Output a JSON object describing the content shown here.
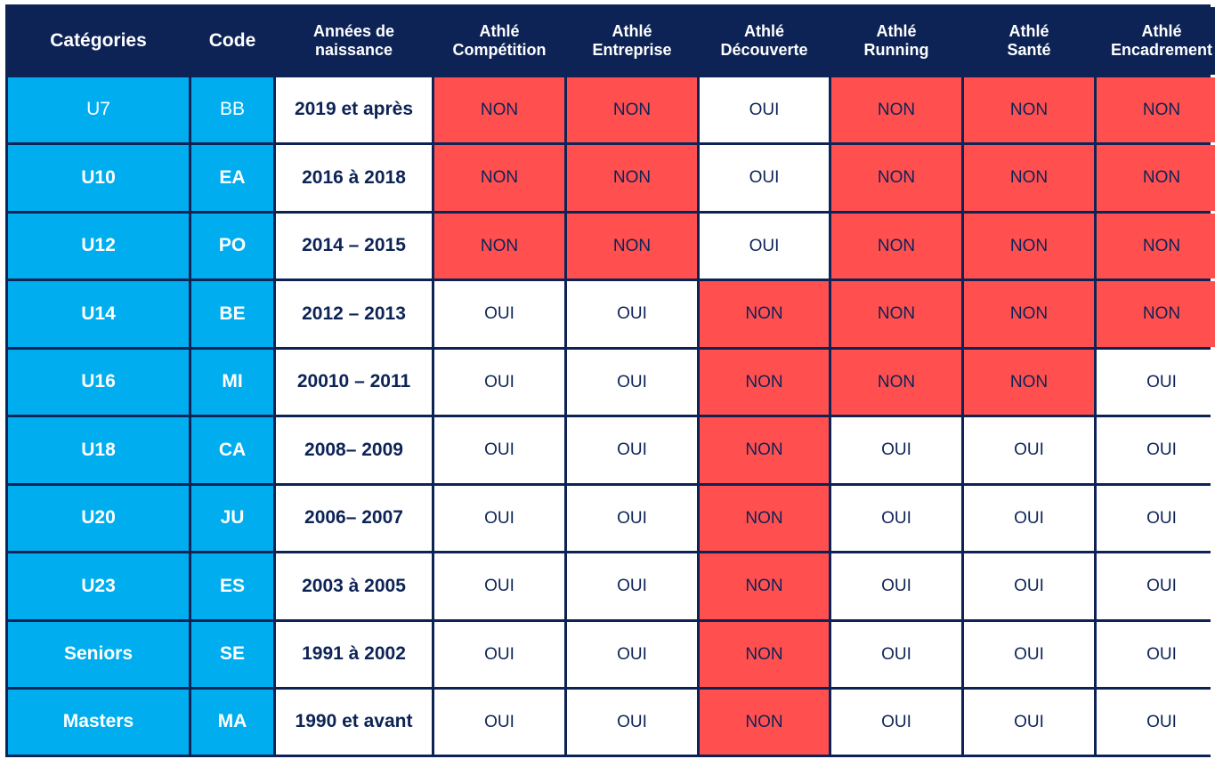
{
  "headers": [
    "Catégories",
    "Code",
    "Années de\nnaissance",
    "Athlé\nCompétition",
    "Athlé\nEntreprise",
    "Athlé\nDécouverte",
    "Athlé\nRunning",
    "Athlé\nSanté",
    "Athlé\nEncadrement"
  ],
  "colors": {
    "header_bg": "#0d2356",
    "category_bg": "#00aeef",
    "non_bg": "#ff4f4f",
    "oui_bg": "#ffffff",
    "text_dark": "#0d2356"
  },
  "rows": [
    {
      "category": "U7",
      "code": "BB",
      "years": "2019 et après",
      "values": [
        "NON",
        "NON",
        "OUI",
        "NON",
        "NON",
        "NON"
      ]
    },
    {
      "category": "U10",
      "code": "EA",
      "years": "2016 à 2018",
      "values": [
        "NON",
        "NON",
        "OUI",
        "NON",
        "NON",
        "NON"
      ]
    },
    {
      "category": "U12",
      "code": "PO",
      "years": "2014 – 2015",
      "values": [
        "NON",
        "NON",
        "OUI",
        "NON",
        "NON",
        "NON"
      ]
    },
    {
      "category": "U14",
      "code": "BE",
      "years": "2012 – 2013",
      "values": [
        "OUI",
        "OUI",
        "NON",
        "NON",
        "NON",
        "NON"
      ]
    },
    {
      "category": "U16",
      "code": "MI",
      "years": "20010 – 2011",
      "values": [
        "OUI",
        "OUI",
        "NON",
        "NON",
        "NON",
        "OUI"
      ]
    },
    {
      "category": "U18",
      "code": "CA",
      "years": "2008– 2009",
      "values": [
        "OUI",
        "OUI",
        "NON",
        "OUI",
        "OUI",
        "OUI"
      ]
    },
    {
      "category": "U20",
      "code": "JU",
      "years": "2006– 2007",
      "values": [
        "OUI",
        "OUI",
        "NON",
        "OUI",
        "OUI",
        "OUI"
      ]
    },
    {
      "category": "U23",
      "code": "ES",
      "years": "2003 à 2005",
      "values": [
        "OUI",
        "OUI",
        "NON",
        "OUI",
        "OUI",
        "OUI"
      ]
    },
    {
      "category": "Seniors",
      "code": "SE",
      "years": "1991 à 2002",
      "values": [
        "OUI",
        "OUI",
        "NON",
        "OUI",
        "OUI",
        "OUI"
      ]
    },
    {
      "category": "Masters",
      "code": "MA",
      "years": "1990 et avant",
      "values": [
        "OUI",
        "OUI",
        "NON",
        "OUI",
        "OUI",
        "OUI"
      ]
    }
  ]
}
